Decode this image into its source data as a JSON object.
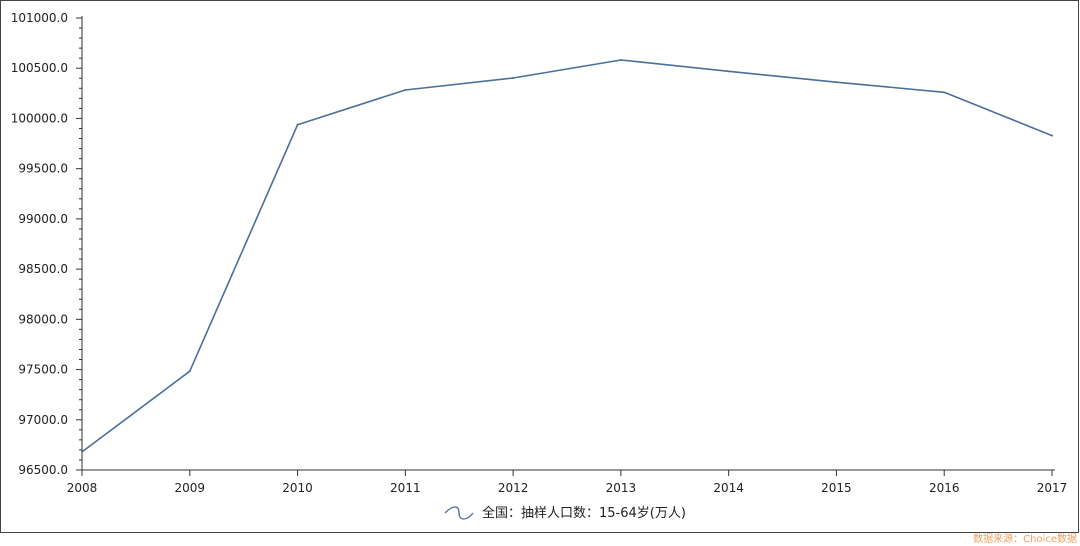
{
  "chart_data": {
    "type": "line",
    "x": [
      "2008",
      "2009",
      "2010",
      "2011",
      "2012",
      "2013",
      "2014",
      "2015",
      "2016",
      "2017"
    ],
    "series": [
      {
        "name": "全国：抽样人口数：15-64岁(万人)",
        "values": [
          96680,
          97484,
          99938,
          100283,
          100403,
          100582,
          100469,
          100361,
          100260,
          99829
        ],
        "color": "#4a6f99"
      }
    ],
    "ylim": [
      96500,
      101000
    ],
    "yticks": [
      "96500.0",
      "97000.0",
      "97500.0",
      "98000.0",
      "98500.0",
      "99000.0",
      "99500.0",
      "100000.0",
      "100500.0",
      "101000.0"
    ],
    "ytick_values": [
      96500,
      97000,
      97500,
      98000,
      98500,
      99000,
      99500,
      100000,
      100500,
      101000
    ],
    "grid": false,
    "legend_position": "bottom-center"
  },
  "source_note": "数据来源：Choice数据"
}
